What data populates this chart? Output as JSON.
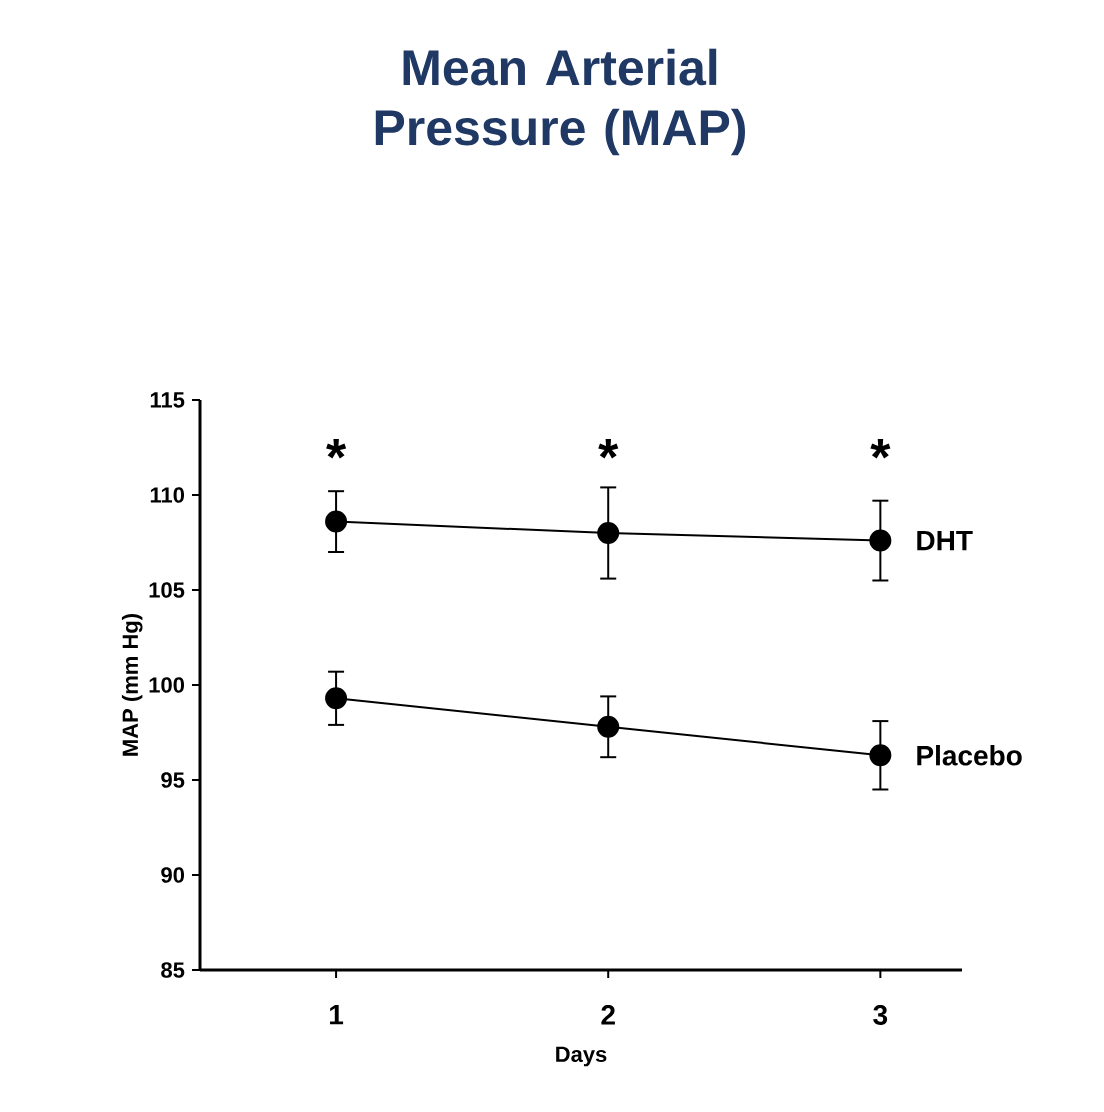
{
  "chart_data": {
    "type": "line",
    "title": "Mean Arterial Pressure (MAP)",
    "xlabel": "Days",
    "ylabel": "MAP (mm Hg)",
    "categories": [
      "1",
      "2",
      "3"
    ],
    "series": [
      {
        "name": "DHT",
        "color": "#000000",
        "values": [
          108.6,
          108.0,
          107.6
        ],
        "errors": [
          1.6,
          2.4,
          2.1
        ]
      },
      {
        "name": "Placebo",
        "color": "#000000",
        "values": [
          99.3,
          97.8,
          96.3
        ],
        "errors": [
          1.4,
          1.6,
          1.8
        ]
      }
    ],
    "ylim": [
      85,
      115
    ],
    "yticks": [
      85,
      90,
      95,
      100,
      105,
      110,
      115
    ],
    "marker": "circle",
    "line_style": "solid",
    "annotations": [
      "*",
      "*",
      "*"
    ]
  }
}
